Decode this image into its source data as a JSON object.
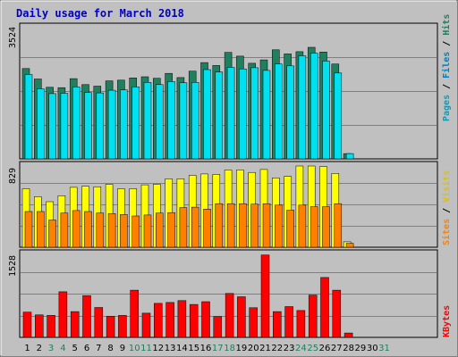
{
  "colors": {
    "background": "#c0c0c0",
    "title": "#0000c0",
    "hits": "#1f7f5f",
    "files": "#00e0f0",
    "pages": "#00a0c0",
    "visits": "#ffff00",
    "sites": "#ff8000",
    "kbytes": "#ff0000",
    "weekend": "#1f7f5f",
    "weekday": "#000000"
  },
  "chart_data": [
    {
      "type": "bar",
      "title": "Daily usage for March 2018",
      "panel": "top",
      "ymax_label": "3524",
      "right_label": [
        "Pages",
        "Files",
        "Hits"
      ],
      "categories": [
        "1",
        "2",
        "3",
        "4",
        "5",
        "6",
        "7",
        "8",
        "9",
        "10",
        "11",
        "12",
        "13",
        "14",
        "15",
        "16",
        "17",
        "18",
        "19",
        "20",
        "21",
        "22",
        "23",
        "24",
        "25",
        "26",
        "27",
        "28"
      ],
      "series": [
        {
          "name": "Hits",
          "values": [
            2410,
            2130,
            1910,
            1900,
            2140,
            1980,
            1940,
            2080,
            2100,
            2160,
            2190,
            2150,
            2280,
            2170,
            2340,
            2570,
            2490,
            2840,
            2740,
            2550,
            2640,
            2910,
            2800,
            2860,
            2976,
            2850,
            2530,
            140
          ]
        },
        {
          "name": "Files",
          "values": [
            2250,
            1870,
            1740,
            1750,
            1920,
            1770,
            1760,
            1830,
            1840,
            1920,
            2040,
            1980,
            2060,
            2030,
            2040,
            2380,
            2320,
            2440,
            2400,
            2430,
            2360,
            2530,
            2480,
            2750,
            2820,
            2610,
            2290,
            140
          ]
        }
      ],
      "ylim": [
        0,
        3524
      ]
    },
    {
      "type": "bar",
      "panel": "middle",
      "ymax_label": "829",
      "right_label": [
        "Sites",
        "Visits"
      ],
      "categories": [
        "1",
        "2",
        "3",
        "4",
        "5",
        "6",
        "7",
        "8",
        "9",
        "10",
        "11",
        "12",
        "13",
        "14",
        "15",
        "16",
        "17",
        "18",
        "19",
        "20",
        "21",
        "22",
        "23",
        "24",
        "25",
        "26",
        "27",
        "28"
      ],
      "series": [
        {
          "name": "Visits",
          "values": [
            590,
            510,
            460,
            520,
            605,
            615,
            610,
            635,
            590,
            590,
            630,
            635,
            690,
            690,
            725,
            740,
            735,
            780,
            780,
            755,
            785,
            700,
            715,
            820,
            820,
            815,
            745,
            55
          ]
        },
        {
          "name": "Sites",
          "values": [
            360,
            360,
            275,
            345,
            370,
            360,
            345,
            340,
            330,
            315,
            325,
            345,
            350,
            400,
            405,
            385,
            440,
            440,
            440,
            435,
            440,
            425,
            375,
            425,
            410,
            410,
            440,
            40
          ]
        }
      ],
      "ylim": [
        0,
        829
      ]
    },
    {
      "type": "bar",
      "panel": "bottom",
      "ymax_label": "1528",
      "right_label": [
        "KBytes"
      ],
      "categories": [
        "1",
        "2",
        "3",
        "4",
        "5",
        "6",
        "7",
        "8",
        "9",
        "10",
        "11",
        "12",
        "13",
        "14",
        "15",
        "16",
        "17",
        "18",
        "19",
        "20",
        "21",
        "22",
        "23",
        "24",
        "25",
        "26",
        "27",
        "28"
      ],
      "series": [
        {
          "name": "KBytes",
          "values": [
            460,
            410,
            400,
            830,
            470,
            760,
            545,
            385,
            400,
            860,
            440,
            620,
            635,
            670,
            600,
            650,
            380,
            800,
            740,
            540,
            1500,
            470,
            560,
            490,
            770,
            1090,
            860,
            80
          ]
        }
      ],
      "ylim": [
        0,
        1528
      ]
    }
  ],
  "xaxis": {
    "labels": [
      "1",
      "2",
      "3",
      "4",
      "5",
      "6",
      "7",
      "8",
      "9",
      "10",
      "11",
      "12",
      "13",
      "14",
      "15",
      "16",
      "17",
      "18",
      "19",
      "20",
      "21",
      "22",
      "23",
      "24",
      "25",
      "26",
      "27",
      "28",
      "29",
      "30",
      "31"
    ],
    "weekend": [
      3,
      4,
      10,
      11,
      17,
      18,
      24,
      25,
      31
    ]
  }
}
